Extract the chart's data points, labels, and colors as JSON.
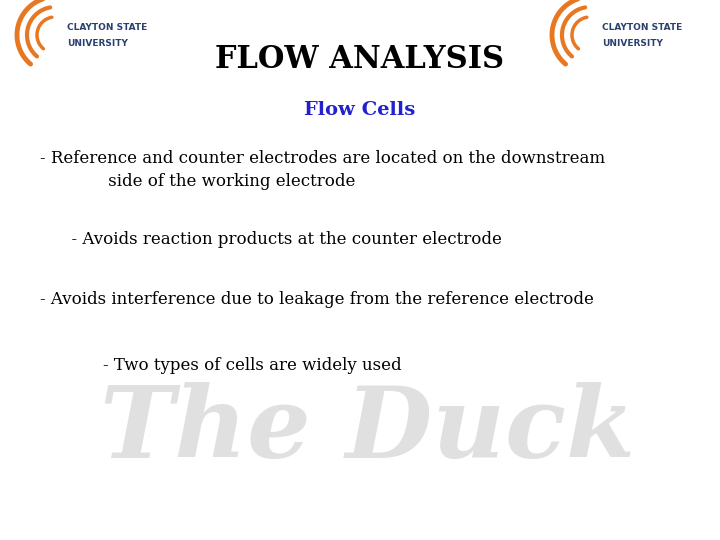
{
  "title": "FLOW ANALYSIS",
  "subtitle": "Flow Cells",
  "subtitle_color": "#2222CC",
  "title_color": "#000000",
  "background_color": "#FFFFFF",
  "bullet_points": [
    "- Reference and counter electrodes are located on the downstream\n             side of the working electrode",
    "     - Avoids reaction products at the counter electrode",
    "- Avoids interference due to leakage from the reference electrode",
    "          - Two types of cells are widely used"
  ],
  "text_color": "#000000",
  "title_fontsize": 22,
  "subtitle_fontsize": 14,
  "body_fontsize": 12,
  "watermark_text": "The Duck",
  "logo_text_1": "CLAYTON STATE",
  "logo_text_2": "UNIVERSITY",
  "logo_text_color": "#2B4070",
  "logo_arc_color": "#E87722"
}
